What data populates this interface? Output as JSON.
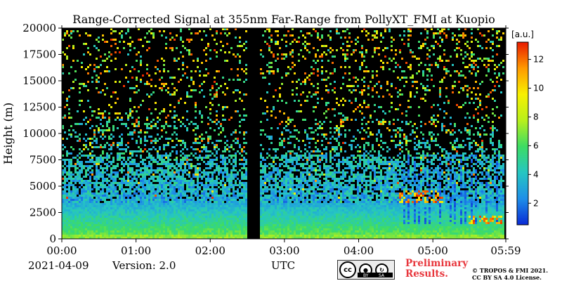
{
  "chart_data": {
    "type": "heatmap",
    "title": "Range-Corrected Signal at 355nm Far-Range from PollyXT_FMI at Kuopio",
    "xlabel": "UTC",
    "ylabel": "Height (m)",
    "x_ticks": [
      "00:00",
      "01:00",
      "02:00",
      "03:00",
      "04:00",
      "05:00",
      "05:59"
    ],
    "x_tick_hours": [
      0,
      1,
      2,
      3,
      4,
      5,
      5.983
    ],
    "xlim_hours": [
      0,
      5.983
    ],
    "y_ticks": [
      0,
      2500,
      5000,
      7500,
      10000,
      12500,
      15000,
      17500,
      20000
    ],
    "ylim": [
      0,
      20000
    ],
    "colorbar": {
      "unit": "[a.u.]",
      "ticks": [
        2,
        4,
        6,
        8,
        10,
        12
      ],
      "range": [
        0.5,
        13.2
      ],
      "colormap": [
        "#0a2ad6",
        "#1e8fe8",
        "#25c6c2",
        "#3ddc64",
        "#b8f01c",
        "#f8f000",
        "#ff9a00",
        "#e81a00"
      ]
    },
    "data_gap_hours": [
      2.5,
      2.667
    ],
    "features": [
      {
        "kind": "boundary layer",
        "height_top_m": 3500,
        "level": 6
      },
      {
        "kind": "near-surface strong signal",
        "height_top_m": 400,
        "level": 7
      },
      {
        "kind": "cloud layer",
        "time_hours": [
          4.55,
          5.15
        ],
        "height_m": [
          3500,
          4500
        ],
        "level": 11
      },
      {
        "kind": "low cloud",
        "time_hours": [
          5.5,
          5.95
        ],
        "height_m": [
          1400,
          2100
        ],
        "level": 11
      },
      {
        "kind": "precipitation columns",
        "time_hours": [
          4.6,
          5.95
        ],
        "height_m": [
          1500,
          8000
        ]
      }
    ]
  },
  "footer": {
    "date": "2021-04-09",
    "version": "Version: 2.0",
    "status_line1": "Preliminary",
    "status_line2": "Results.",
    "copyright_line1": "© TROPOS & FMI 2021.",
    "copyright_line2": "CC BY SA 4.0 License.",
    "license_badge": {
      "cc": "cc",
      "by": "BY",
      "sa": "SA"
    }
  }
}
